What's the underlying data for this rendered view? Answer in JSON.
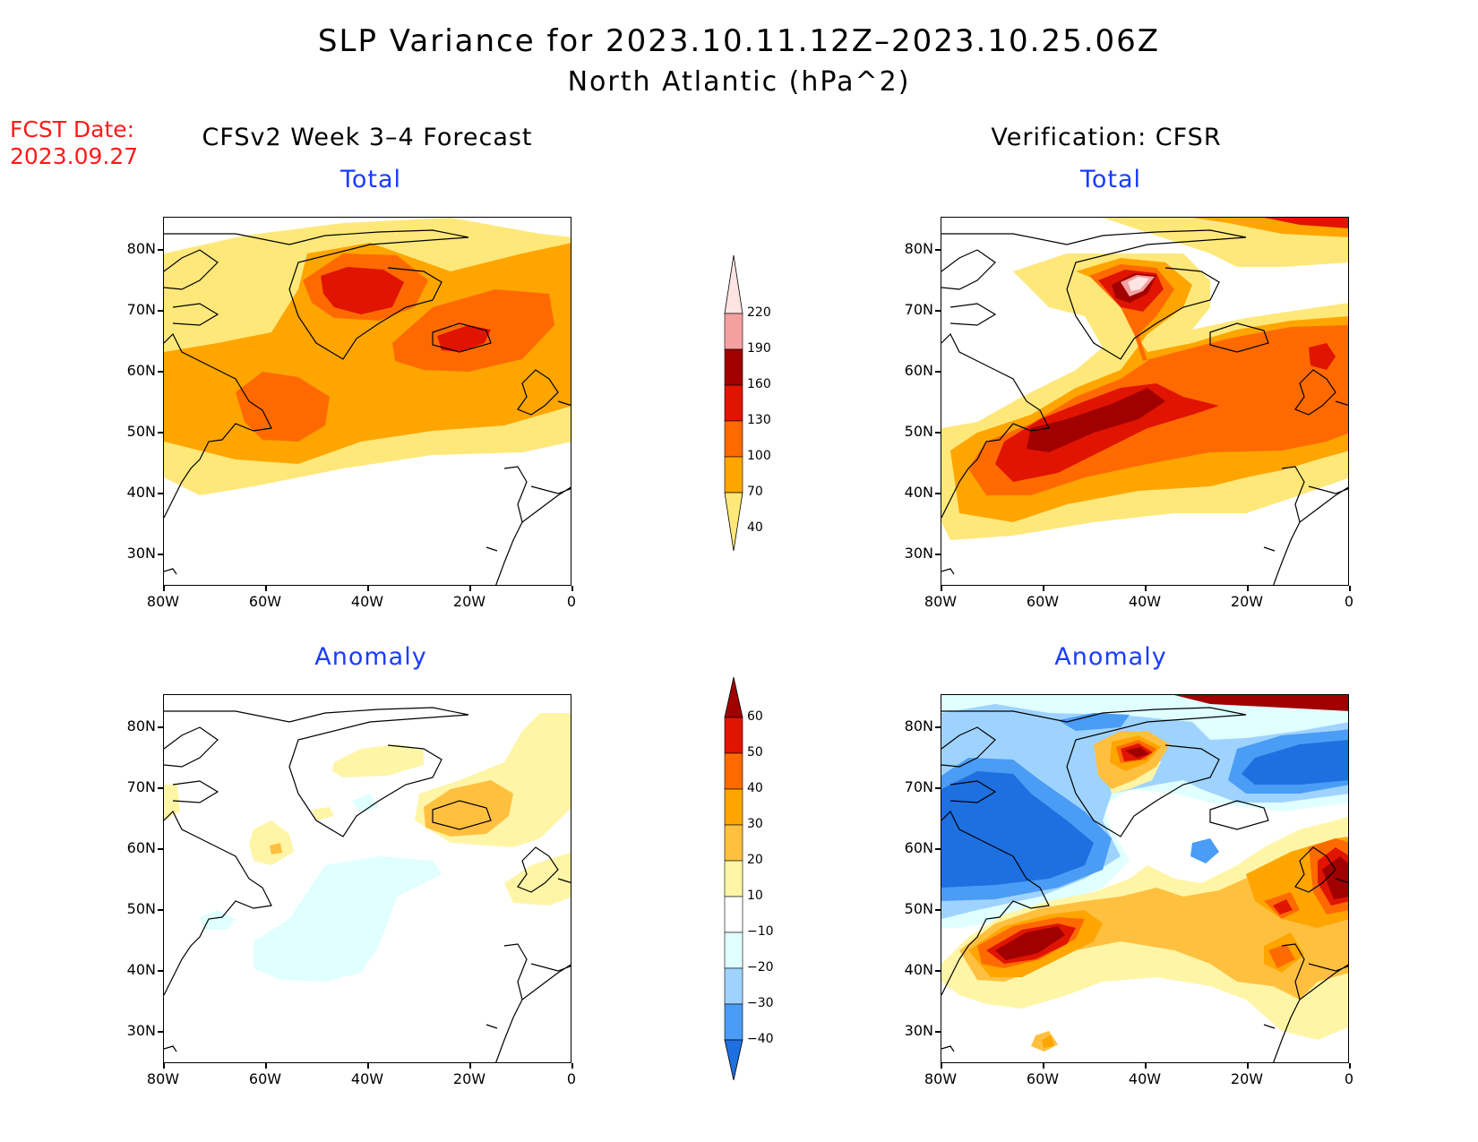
{
  "title": {
    "line1": "SLP Variance for 2023.10.11.12Z–2023.10.25.06Z",
    "line2": "North Atlantic (hPa^2)"
  },
  "fcst": {
    "line1": "FCST Date:",
    "line2": "2023.09.27"
  },
  "columns": {
    "left": "CFSv2 Week 3–4 Forecast",
    "right": "Verification: CFSR"
  },
  "panel_titles": {
    "total": "Total",
    "anomaly": "Anomaly"
  },
  "axes": {
    "lat_labels": [
      "80N",
      "70N",
      "60N",
      "50N",
      "40N",
      "30N"
    ],
    "lon_labels": [
      "80W",
      "60W",
      "40W",
      "20W",
      "0"
    ]
  },
  "colorbars": {
    "total": {
      "labels": [
        "220",
        "190",
        "160",
        "130",
        "100",
        "70",
        "40"
      ],
      "colors": [
        "#ffe4e4",
        "#f4a0a0",
        "#a00000",
        "#e01400",
        "#ff6a00",
        "#ffa500",
        "#ffe87a"
      ]
    },
    "anomaly": {
      "labels": [
        "60",
        "50",
        "40",
        "30",
        "20",
        "10",
        "−10",
        "−20",
        "−30",
        "−40"
      ],
      "colors": [
        "#a00000",
        "#e01400",
        "#ff6a00",
        "#ffa500",
        "#ffc040",
        "#fff5a6",
        "#ffffff",
        "#e0ffff",
        "#9fd3ff",
        "#4a9cf5",
        "#1e6fe0"
      ]
    }
  },
  "fill_colors": {
    "yellow": "#ffe87a",
    "orange": "#ffa500",
    "dark_orange": "#ff6a00",
    "red": "#e01400",
    "dark_red": "#a00000",
    "pink": "#f4a0a0",
    "light_pink": "#ffe4e4",
    "light_yellow": "#fff5a6",
    "light_orange": "#ffc040",
    "cyan": "#e0ffff",
    "light_blue": "#9fd3ff",
    "blue": "#4a9cf5",
    "dark_blue": "#1e6fe0"
  }
}
